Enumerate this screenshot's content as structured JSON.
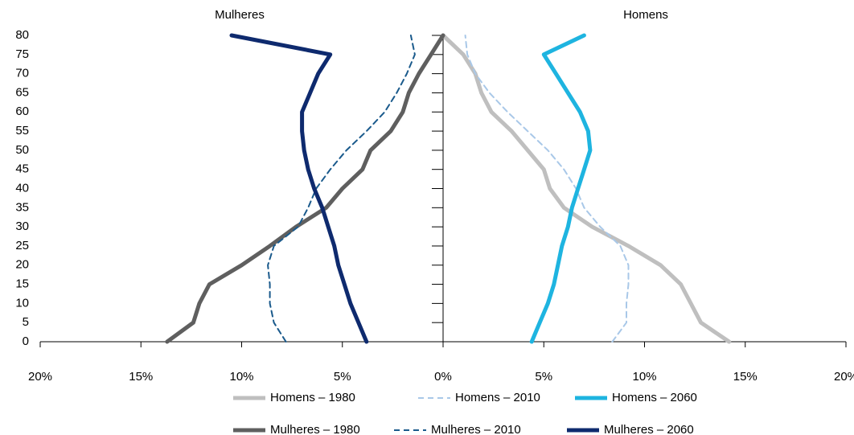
{
  "chart_data": {
    "type": "line",
    "panel_titles": [
      "Mulheres",
      "Homens"
    ],
    "y": [
      0,
      5,
      10,
      15,
      20,
      25,
      30,
      35,
      40,
      45,
      50,
      55,
      60,
      65,
      70,
      75,
      80
    ],
    "ylim": [
      0,
      80
    ],
    "yticks": [
      0,
      5,
      10,
      15,
      20,
      25,
      30,
      35,
      40,
      45,
      50,
      55,
      60,
      65,
      70,
      75,
      80
    ],
    "xlim": [
      -20,
      20
    ],
    "xticks": [
      {
        "value": -20,
        "label": "20%"
      },
      {
        "value": -15,
        "label": "15%"
      },
      {
        "value": -10,
        "label": "10%"
      },
      {
        "value": -5,
        "label": "5%"
      },
      {
        "value": 0,
        "label": "0%"
      },
      {
        "value": 5,
        "label": "5%"
      },
      {
        "value": 10,
        "label": "10%"
      },
      {
        "value": 15,
        "label": "15%"
      },
      {
        "value": 20,
        "label": "20%"
      }
    ],
    "series": [
      {
        "name": "Homens – 1980",
        "color": "#bfbfbf",
        "side": "right",
        "dash": "solid",
        "width": 5,
        "values": [
          14.2,
          12.8,
          12.3,
          11.8,
          10.8,
          9.2,
          7.4,
          6.0,
          5.3,
          5.0,
          4.2,
          3.4,
          2.4,
          1.9,
          1.6,
          1.0,
          0.0
        ]
      },
      {
        "name": "Homens – 2010",
        "color": "#a9c8e8",
        "side": "right",
        "dash": "dashed",
        "width": 2,
        "values": [
          8.4,
          9.1,
          9.1,
          9.2,
          9.2,
          8.8,
          7.8,
          7.0,
          6.6,
          6.0,
          5.2,
          4.2,
          3.2,
          2.3,
          1.6,
          1.2,
          1.1
        ]
      },
      {
        "name": "Homens – 2060",
        "color": "#1eb4e0",
        "side": "right",
        "dash": "solid",
        "width": 5,
        "values": [
          4.4,
          4.8,
          5.2,
          5.5,
          5.7,
          5.9,
          6.2,
          6.4,
          6.7,
          7.0,
          7.3,
          7.2,
          6.8,
          6.2,
          5.6,
          5.0,
          7.0
        ]
      },
      {
        "name": "Mulheres – 1980",
        "color": "#5f5f5f",
        "side": "left",
        "dash": "solid",
        "width": 5,
        "values": [
          13.7,
          12.4,
          12.1,
          11.6,
          10.0,
          8.6,
          7.3,
          5.8,
          5.0,
          4.0,
          3.6,
          2.6,
          2.0,
          1.7,
          1.2,
          0.6,
          0.0
        ]
      },
      {
        "name": "Mulheres – 2010",
        "color": "#1a5a8c",
        "side": "left",
        "dash": "dashed",
        "width": 2,
        "values": [
          7.8,
          8.4,
          8.6,
          8.6,
          8.7,
          8.4,
          7.2,
          6.7,
          6.3,
          5.6,
          4.8,
          3.8,
          2.9,
          2.3,
          1.8,
          1.4,
          1.6
        ]
      },
      {
        "name": "Mulheres – 2060",
        "color": "#0e2a6e",
        "side": "left",
        "dash": "solid",
        "width": 5,
        "values": [
          3.8,
          4.2,
          4.6,
          4.9,
          5.2,
          5.4,
          5.7,
          6.0,
          6.4,
          6.7,
          6.9,
          7.0,
          7.0,
          6.6,
          6.2,
          5.6,
          10.5
        ]
      }
    ]
  }
}
